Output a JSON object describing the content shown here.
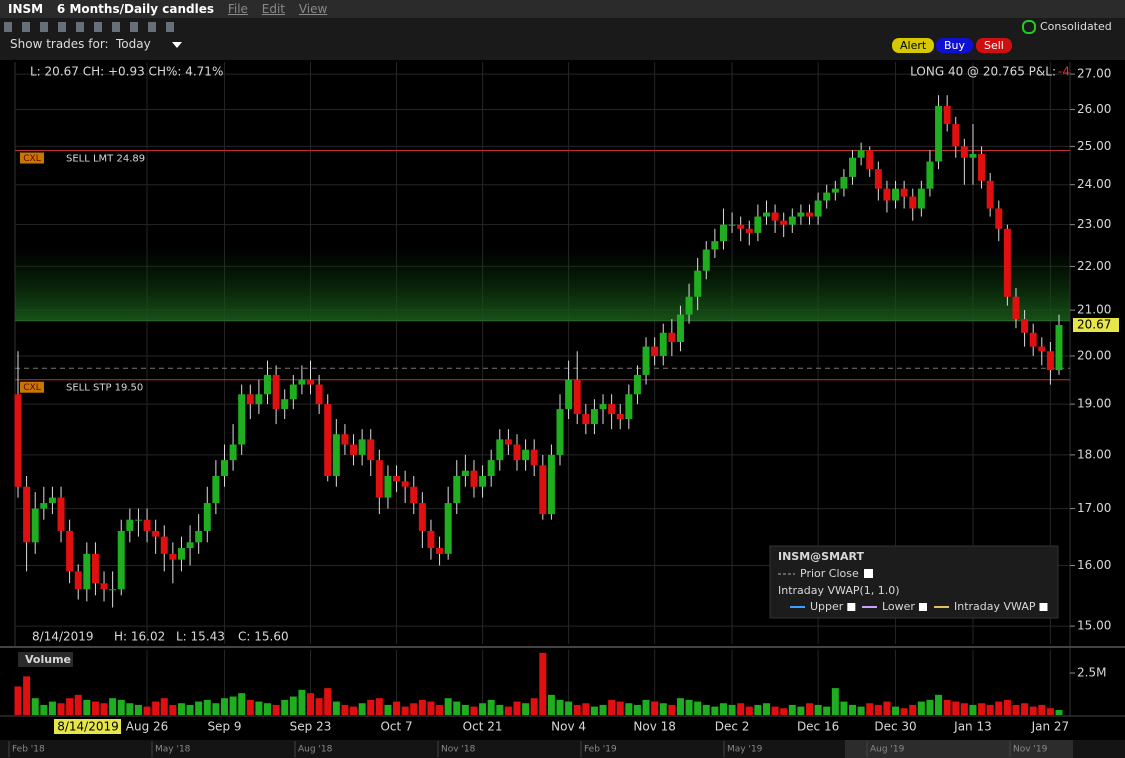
{
  "header": {
    "symbol": "INSM",
    "period": "6 Months/Daily candles",
    "menu": [
      "File",
      "Edit",
      "View"
    ],
    "show_trades_label": "Show trades for:",
    "show_trades_value": "Today",
    "buttons": [
      "Alert",
      "Buy",
      "Sell"
    ],
    "feed": "Consolidated"
  },
  "chart_data": {
    "type": "candlestick",
    "quote": "L: 20.67 CH: +0.93 CH%: 4.71%",
    "position": {
      "text": "LONG 40 @ 20.765 P&L:",
      "pnl": "-4",
      "price": 20.765
    },
    "last": {
      "value": 20.67,
      "label": "20.67"
    },
    "prior_close": 19.74,
    "orders": [
      {
        "tag": "CXL",
        "label": "SELL LMT 24.89",
        "price": 24.89
      },
      {
        "tag": "CXL",
        "label": "SELL STP 19.50",
        "price": 19.5
      }
    ],
    "crosshair": {
      "date": "8/14/2019",
      "high": "H: 16.02",
      "low": "L: 15.43",
      "close": "C: 15.60"
    },
    "categories": [
      null,
      null,
      null,
      null,
      null,
      null,
      null,
      null,
      null,
      null,
      null,
      null,
      null,
      null,
      null,
      "Aug 26",
      null,
      null,
      null,
      null,
      null,
      null,
      null,
      null,
      "Sep 9",
      null,
      null,
      null,
      null,
      null,
      null,
      null,
      null,
      null,
      "Sep 23",
      null,
      null,
      null,
      null,
      null,
      null,
      null,
      null,
      null,
      "Oct 7",
      null,
      null,
      null,
      null,
      null,
      null,
      null,
      null,
      null,
      "Oct 21",
      null,
      null,
      null,
      null,
      null,
      null,
      null,
      null,
      null,
      "Nov 4",
      null,
      null,
      null,
      null,
      null,
      null,
      null,
      null,
      null,
      "Nov 18",
      null,
      null,
      null,
      null,
      null,
      null,
      null,
      null,
      "Dec 2",
      null,
      null,
      null,
      null,
      null,
      null,
      null,
      null,
      null,
      "Dec 16",
      null,
      null,
      null,
      null,
      null,
      null,
      null,
      null,
      "Dec 30",
      null,
      null,
      null,
      null,
      null,
      null,
      null,
      null,
      "Jan 13",
      null,
      null,
      null,
      null,
      null,
      null,
      null,
      null,
      "Jan 27",
      null
    ],
    "open": [
      19.2,
      17.4,
      16.4,
      17.0,
      17.1,
      17.2,
      16.6,
      15.9,
      15.6,
      16.2,
      15.7,
      15.6,
      15.6,
      16.6,
      16.8,
      16.8,
      16.6,
      16.5,
      16.2,
      16.1,
      16.3,
      16.4,
      16.6,
      17.1,
      17.6,
      17.9,
      18.2,
      19.2,
      19.0,
      19.2,
      19.6,
      18.9,
      19.1,
      19.4,
      19.5,
      19.4,
      19.0,
      17.6,
      18.4,
      18.2,
      18.0,
      18.3,
      17.9,
      17.2,
      17.6,
      17.5,
      17.4,
      17.1,
      16.6,
      16.3,
      16.2,
      17.1,
      17.6,
      17.7,
      17.4,
      17.6,
      17.9,
      18.3,
      18.2,
      17.9,
      18.1,
      17.8,
      16.9,
      18.0,
      18.9,
      19.5,
      18.8,
      18.6,
      18.9,
      19.0,
      18.8,
      18.7,
      19.2,
      19.6,
      20.2,
      20.0,
      20.5,
      20.3,
      20.9,
      21.3,
      21.9,
      22.4,
      22.6,
      23.0,
      23.0,
      22.9,
      22.8,
      23.2,
      23.3,
      23.1,
      23.0,
      23.2,
      23.3,
      23.2,
      23.6,
      23.8,
      23.9,
      24.2,
      24.7,
      24.9,
      24.4,
      23.9,
      23.6,
      23.9,
      23.7,
      23.4,
      23.9,
      24.6,
      26.1,
      25.6,
      25.0,
      24.7,
      24.8,
      24.1,
      23.4,
      22.9,
      21.3,
      20.8,
      20.5,
      20.2,
      20.1,
      19.7
    ],
    "high": [
      20.1,
      17.6,
      17.3,
      17.4,
      17.4,
      17.4,
      16.8,
      16.02,
      16.4,
      16.4,
      15.9,
      15.9,
      16.8,
      17.0,
      17.0,
      17.0,
      16.8,
      16.7,
      16.4,
      16.5,
      16.7,
      16.9,
      17.4,
      17.9,
      18.2,
      18.6,
      19.4,
      19.4,
      19.5,
      19.9,
      19.8,
      19.3,
      19.6,
      19.8,
      19.9,
      19.6,
      19.2,
      18.7,
      18.6,
      18.4,
      18.5,
      18.5,
      18.1,
      17.8,
      17.8,
      17.7,
      17.6,
      17.3,
      16.8,
      16.5,
      17.4,
      17.9,
      18.0,
      17.9,
      17.8,
      18.1,
      18.5,
      18.5,
      18.4,
      18.3,
      18.3,
      18.0,
      18.2,
      19.2,
      19.9,
      20.1,
      19.0,
      19.1,
      19.2,
      19.2,
      19.0,
      19.4,
      19.8,
      20.4,
      20.4,
      20.7,
      20.8,
      21.1,
      21.6,
      22.2,
      22.6,
      22.9,
      23.4,
      23.3,
      23.2,
      23.1,
      23.5,
      23.6,
      23.5,
      23.3,
      23.4,
      23.5,
      23.5,
      23.8,
      24.0,
      24.1,
      24.4,
      24.9,
      25.1,
      25.0,
      24.6,
      24.1,
      24.1,
      24.1,
      23.9,
      24.1,
      24.9,
      26.4,
      26.4,
      25.8,
      25.2,
      25.6,
      25.0,
      24.3,
      23.6,
      23.0,
      21.5,
      21.0,
      20.7,
      20.4,
      20.3,
      20.9
    ],
    "low": [
      17.2,
      15.9,
      16.2,
      16.8,
      16.9,
      16.4,
      15.7,
      15.43,
      15.4,
      15.5,
      15.4,
      15.3,
      15.5,
      16.4,
      16.5,
      16.4,
      16.2,
      15.9,
      15.7,
      15.9,
      16.0,
      16.2,
      16.4,
      16.9,
      17.4,
      17.7,
      18.0,
      18.7,
      18.8,
      19.0,
      18.6,
      18.7,
      18.9,
      19.2,
      19.2,
      18.8,
      17.5,
      17.4,
      18.0,
      17.8,
      17.8,
      17.6,
      16.9,
      17.0,
      17.3,
      17.1,
      16.9,
      16.3,
      16.1,
      16.0,
      16.1,
      16.9,
      17.4,
      17.2,
      17.2,
      17.4,
      17.7,
      18.0,
      17.7,
      17.7,
      17.6,
      16.8,
      16.8,
      17.8,
      18.7,
      18.6,
      18.4,
      18.4,
      18.6,
      18.5,
      18.5,
      18.5,
      19.0,
      19.4,
      19.8,
      19.8,
      20.0,
      20.1,
      20.7,
      21.0,
      21.7,
      22.2,
      22.4,
      22.8,
      22.6,
      22.5,
      22.6,
      23.0,
      22.8,
      22.7,
      22.8,
      23.0,
      23.0,
      23.0,
      23.4,
      23.6,
      23.7,
      24.0,
      24.5,
      24.2,
      23.6,
      23.3,
      23.4,
      23.4,
      23.1,
      23.2,
      23.7,
      24.4,
      25.4,
      24.7,
      24.0,
      24.0,
      23.9,
      23.2,
      22.6,
      21.1,
      20.6,
      20.2,
      20.0,
      19.8,
      19.4,
      19.6
    ],
    "close": [
      17.4,
      16.4,
      17.0,
      17.1,
      17.2,
      16.6,
      15.9,
      15.6,
      16.2,
      15.7,
      15.6,
      15.6,
      16.6,
      16.8,
      16.8,
      16.6,
      16.5,
      16.2,
      16.1,
      16.3,
      16.4,
      16.6,
      17.1,
      17.6,
      17.9,
      18.2,
      19.2,
      19.0,
      19.2,
      19.6,
      18.9,
      19.1,
      19.4,
      19.5,
      19.4,
      19.0,
      17.6,
      18.4,
      18.2,
      18.0,
      18.3,
      17.9,
      17.2,
      17.6,
      17.5,
      17.4,
      17.1,
      16.6,
      16.3,
      16.2,
      17.1,
      17.6,
      17.7,
      17.4,
      17.6,
      17.9,
      18.3,
      18.2,
      17.9,
      18.1,
      17.8,
      16.9,
      18.0,
      18.9,
      19.5,
      18.8,
      18.6,
      18.9,
      19.0,
      18.8,
      18.7,
      19.2,
      19.6,
      20.2,
      20.0,
      20.5,
      20.3,
      20.9,
      21.3,
      21.9,
      22.4,
      22.6,
      23.0,
      23.0,
      22.9,
      22.8,
      23.2,
      23.3,
      23.1,
      23.0,
      23.2,
      23.3,
      23.2,
      23.6,
      23.8,
      23.9,
      24.2,
      24.7,
      24.9,
      24.4,
      23.9,
      23.6,
      23.9,
      23.7,
      23.4,
      23.9,
      24.6,
      26.1,
      25.6,
      25.0,
      24.7,
      24.8,
      24.1,
      23.4,
      22.9,
      21.3,
      20.8,
      20.5,
      20.2,
      20.1,
      19.7,
      20.67
    ],
    "volume": [
      1.7,
      2.3,
      1.0,
      0.6,
      0.8,
      0.7,
      1.0,
      1.2,
      0.9,
      0.8,
      0.7,
      1.0,
      0.9,
      0.7,
      0.6,
      0.5,
      0.8,
      1.0,
      0.6,
      0.7,
      0.6,
      0.8,
      0.9,
      0.7,
      1.0,
      1.1,
      1.3,
      0.9,
      0.8,
      0.7,
      0.6,
      0.9,
      1.1,
      1.5,
      1.3,
      1.0,
      1.6,
      0.8,
      0.6,
      0.5,
      0.7,
      0.9,
      1.0,
      0.6,
      0.8,
      0.5,
      0.7,
      0.9,
      0.8,
      0.6,
      1.0,
      0.8,
      0.6,
      0.5,
      0.7,
      0.9,
      0.6,
      0.5,
      0.8,
      0.7,
      1.0,
      3.7,
      1.2,
      0.9,
      0.8,
      0.6,
      0.7,
      0.5,
      0.6,
      0.9,
      0.8,
      0.7,
      0.6,
      0.9,
      0.8,
      0.7,
      0.6,
      1.0,
      0.9,
      0.8,
      0.6,
      0.5,
      0.7,
      0.6,
      0.7,
      0.5,
      0.6,
      0.7,
      0.5,
      0.4,
      0.6,
      0.5,
      0.7,
      0.6,
      0.5,
      1.6,
      0.8,
      0.6,
      0.5,
      0.7,
      0.6,
      0.8,
      0.5,
      0.4,
      0.6,
      0.8,
      0.9,
      1.2,
      0.9,
      0.8,
      0.7,
      0.6,
      0.7,
      0.6,
      0.8,
      0.9,
      0.6,
      0.7,
      0.5,
      0.6,
      0.4,
      0.3
    ],
    "log_scale": true,
    "grid": true,
    "up_color": "#1fae1f",
    "down_color": "#e01010",
    "ylim": [
      14.78,
      27.35
    ],
    "yticks": [
      {
        "value": 15,
        "label": "15.00"
      },
      {
        "value": 16,
        "label": "16.00"
      },
      {
        "value": 17,
        "label": "17.00"
      },
      {
        "value": 18,
        "label": "18.00"
      },
      {
        "value": 19,
        "label": "19.00"
      },
      {
        "value": 20,
        "label": "20.00"
      },
      {
        "value": 21,
        "label": "21.00"
      },
      {
        "value": 22,
        "label": "22.00"
      },
      {
        "value": 23,
        "label": "23.00"
      },
      {
        "value": 24,
        "label": "24.00"
      },
      {
        "value": 25,
        "label": "25.00"
      },
      {
        "value": 26,
        "label": "26.00"
      },
      {
        "value": 27,
        "label": "27.00"
      }
    ],
    "volume_title": "Volume",
    "volume_ylim": [
      0,
      3.75
    ],
    "volume_yticks": [
      {
        "value": 2.5,
        "label": "2.5M"
      }
    ],
    "legend": {
      "title": "INSM@SMART",
      "prior_close": "Prior Close",
      "vwap_title": "Intraday VWAP(1, 1.0)",
      "items": [
        "Upper",
        "Lower",
        "Intraday VWAP"
      ]
    },
    "navigator": [
      "Feb '18",
      "May '18",
      "Aug '18",
      "Nov '18",
      "Feb '19",
      "May '19",
      "Aug '19",
      "Nov '19"
    ]
  }
}
